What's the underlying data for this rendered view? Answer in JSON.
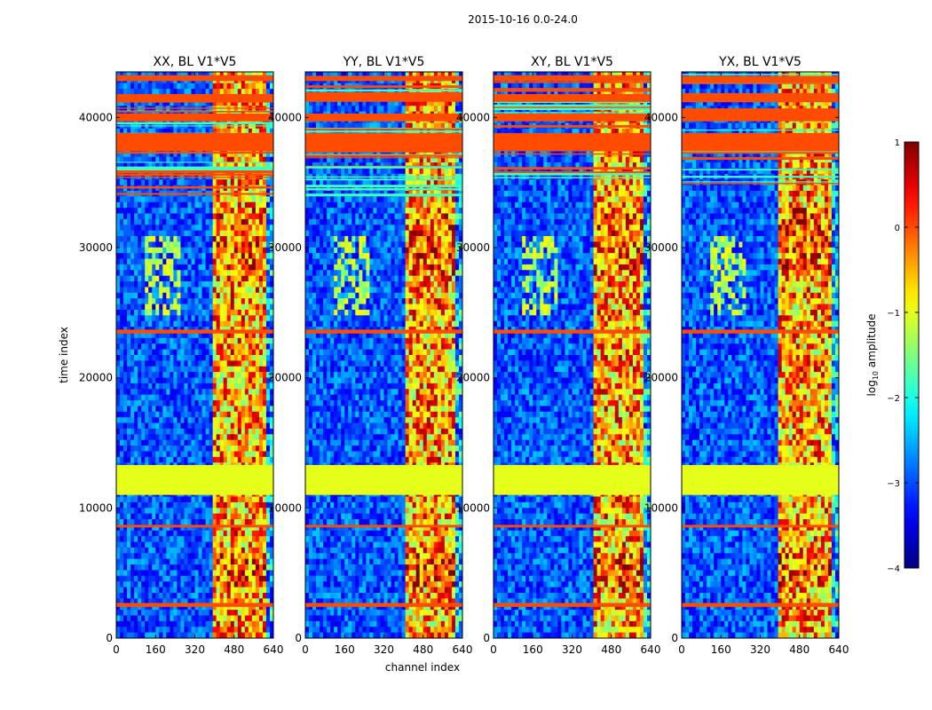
{
  "chart_data": {
    "type": "heatmap",
    "suptitle": "2015-10-16 0.0-24.0",
    "xlabel": "channel index",
    "ylabel": "time index",
    "xlim": [
      0,
      640
    ],
    "ylim": [
      0,
      43500
    ],
    "xticks": [
      0,
      160,
      320,
      480,
      640
    ],
    "yticks": [
      0,
      10000,
      20000,
      30000,
      40000
    ],
    "colormap": "jet",
    "panels": [
      {
        "title": "XX, BL V1*V5",
        "rfi_channel_start": 400
      },
      {
        "title": "YY, BL V1*V5",
        "rfi_channel_start": 405
      },
      {
        "title": "XY, BL V1*V5",
        "rfi_channel_start": 405
      },
      {
        "title": "YX, BL V1*V5",
        "rfi_channel_start": 400
      }
    ],
    "colorbar": {
      "label_main": "log",
      "label_sub": "10",
      "label_rest": " amplitude",
      "range": [
        -4,
        1
      ],
      "ticks": [
        1,
        0,
        -1,
        -2,
        -3,
        -4
      ],
      "tick_labels": [
        "1",
        "0",
        "−1",
        "−2",
        "−3",
        "−4"
      ]
    },
    "flagged_bands": [
      {
        "t0": 11000,
        "t1": 13300,
        "level": -1.0
      },
      {
        "t0": 37400,
        "t1": 38800,
        "level": 0.0
      },
      {
        "t0": 39700,
        "t1": 40300,
        "level": 0.0
      },
      {
        "t0": 41200,
        "t1": 41800,
        "level": 0.0
      },
      {
        "t0": 42800,
        "t1": 43200,
        "level": 0.0
      },
      {
        "t0": 23400,
        "t1": 23700,
        "level": 0.0
      },
      {
        "t0": 8500,
        "t1": 8700,
        "level": 0.0
      },
      {
        "t0": 2400,
        "t1": 2700,
        "level": 0.0
      }
    ]
  }
}
